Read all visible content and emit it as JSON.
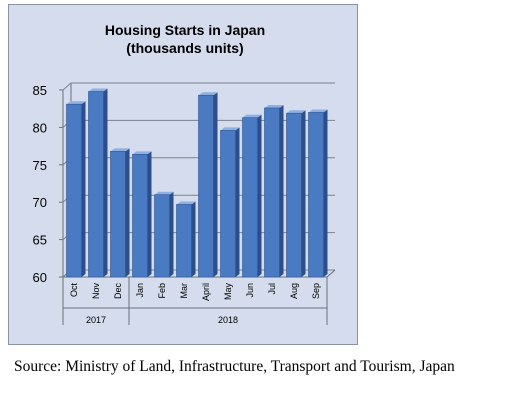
{
  "chart_data": {
    "type": "bar",
    "title": "Housing Starts in Japan",
    "subtitle": "(thousands units)",
    "categories": [
      "Oct",
      "Nov",
      "Dec",
      "Jan",
      "Feb",
      "Mar",
      "April",
      "May",
      "Jun",
      "Jul",
      "Aug",
      "Sep"
    ],
    "values": [
      83.1,
      84.8,
      76.8,
      76.4,
      71.0,
      69.7,
      84.3,
      79.6,
      81.3,
      82.6,
      81.9,
      82.0
    ],
    "year_groups": [
      {
        "label": "2017",
        "span": 3
      },
      {
        "label": "2018",
        "span": 9
      }
    ],
    "ylim": [
      60,
      85
    ],
    "yticks": [
      "60",
      "65",
      "70",
      "75",
      "80",
      "85"
    ],
    "grid": "horizontal",
    "bar_color": "#4a7ac2",
    "xlabel": "",
    "ylabel": ""
  },
  "source_note": "Source: Ministry of Land, Infrastructure, Transport and Tourism, Japan"
}
